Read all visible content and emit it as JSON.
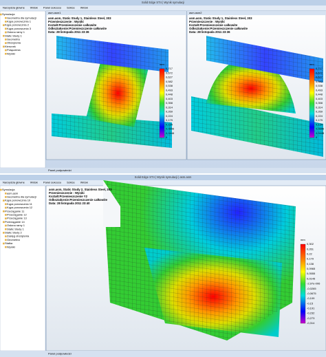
{
  "top_window": {
    "title": "Solid Edge ST4 | Wynik symulacji",
    "tabs": [
      "Narzędzia główne",
      "Widok",
      "Panel sukcesu",
      "Szkice",
      "Widok"
    ],
    "tree": [
      "Symulacja",
      "Geometria dla symulacji",
      "Kąpa ponowcznia 1",
      "Kąpa ponowcznia 2",
      "Kąpa ponowcznia 3",
      "Osłona ramy 1",
      "Static Study 1",
      "Geometria",
      "Obciążenia",
      "Kierunek",
      "Połączenia",
      "Wyniki"
    ],
    "viewports": [
      {
        "tab": "asm.asm1",
        "annotation": [
          "asm.asm, Static Study 1, Stainless Steel, 303",
          "Przemieszczenie : Wyniki",
          "Kształt:Przemieszczenie całkowite",
          "Odkształcenie:Przemieszczenie całkowite",
          "Data: 28 listopada 2011 23:36"
        ],
        "legend_unit": "mm",
        "legend": [
          "0,717",
          "0,672",
          "0,627",
          "0,582",
          "0,538",
          "0,493",
          "0,448",
          "0,403",
          "0,358",
          "0,314",
          "0,269",
          "0,224",
          "0,179",
          "0,134",
          "0,0896",
          "0,0448",
          "0"
        ]
      },
      {
        "tab": "asm.asm2",
        "annotation": [
          "asm.asm, Static Study 1, Stainless Steel, 303",
          "Przemieszczenie : Wyniki",
          "Kształt:Przemieszczenie całkowite",
          "Odkształcenie:Przemieszczenie całkowite",
          "Data: 28 listopada 2011 23:36"
        ],
        "legend_unit": "mm",
        "legend": [
          "0,717",
          "0,672",
          "0,627",
          "0,582",
          "0,538",
          "0,493",
          "0,448",
          "0,403",
          "0,358",
          "0,314",
          "0,269",
          "0,224",
          "0,179",
          "0,134",
          "0,0896",
          "0,0448",
          "0"
        ]
      }
    ],
    "status": "Panel podpowiedzi"
  },
  "bottom_window": {
    "title": "Solid Edge ST4 | Wynik symulacji | asm.asm",
    "tabs": [
      "Narzędzia główne",
      "Widok",
      "Panel sukcesu",
      "Szkice",
      "Widok"
    ],
    "tree": [
      "Symulacja",
      "asm.asm",
      "Geometria dla symulacji",
      "Kąpa ponowcznia 10",
      "Kąpa ponowcznia 11",
      "Kąpa ponowcznia 12",
      "Przeciąganie 11",
      "Przeciąganie 12",
      "Przeciąganie 13",
      "Przeciąganie 14",
      "Osłona ramy 1",
      "Static Study 1",
      "Static Study 2",
      "Zasięg obciążenia",
      "Geometria",
      "Stałka",
      "Wyniki"
    ],
    "viewport": {
      "annotation": [
        "asm.asm, Static Study 2, Stainless Steel, 303",
        "Przemieszczenie : Wyniki",
        "Kształt:Przemieszczenie Y2",
        "Odkształcenie:Przemieszczenie całkowite",
        "Data: 28 listopada 2011 23:40"
      ],
      "legend_unit": "mm",
      "legend": [
        "0,302",
        "0,261",
        "0,22",
        "0,179",
        "0,138",
        "0,0965",
        "0,0555",
        "0,0145",
        "-2,97e-006",
        "-0,0265",
        "-0,0675",
        "-0,109",
        "-0,15",
        "-0,191",
        "-0,232",
        "-0,273",
        "-0,314"
      ]
    },
    "status": "Panel podpowiedzi"
  }
}
